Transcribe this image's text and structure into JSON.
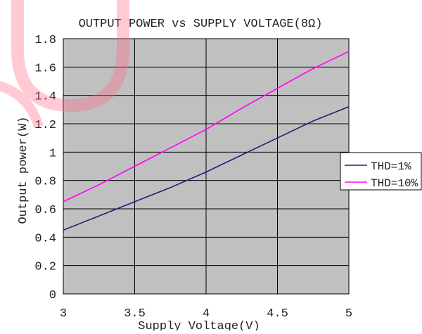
{
  "chart_data": {
    "type": "line",
    "title": "OUTPUT POWER vs SUPPLY VOLTAGE(8Ω)",
    "xlabel": "Supply Voltage(V)",
    "ylabel": "Output power(W)",
    "xlim": [
      3,
      5
    ],
    "ylim": [
      0,
      1.8
    ],
    "x_ticks": [
      "3",
      "3.5",
      "4",
      "4.5",
      "5"
    ],
    "y_ticks": [
      "0",
      "0.2",
      "0.4",
      "0.6",
      "0.8",
      "1",
      "1.2",
      "1.4",
      "1.6",
      "1.8"
    ],
    "grid": true,
    "legend_position": "right",
    "plot_background": "#c0c0c0",
    "series": [
      {
        "name": "THD=1%",
        "color": "#1f1f7a",
        "x": [
          3.0,
          3.25,
          3.5,
          3.75,
          4.0,
          4.25,
          4.5,
          4.75,
          5.0
        ],
        "y": [
          0.45,
          0.55,
          0.65,
          0.75,
          0.86,
          0.98,
          1.1,
          1.22,
          1.32
        ]
      },
      {
        "name": "THD=10%",
        "color": "#ff00ff",
        "x": [
          3.0,
          3.25,
          3.5,
          3.75,
          4.0,
          4.25,
          4.5,
          4.75,
          5.0
        ],
        "y": [
          0.65,
          0.77,
          0.9,
          1.03,
          1.16,
          1.31,
          1.45,
          1.59,
          1.71
        ]
      }
    ]
  }
}
